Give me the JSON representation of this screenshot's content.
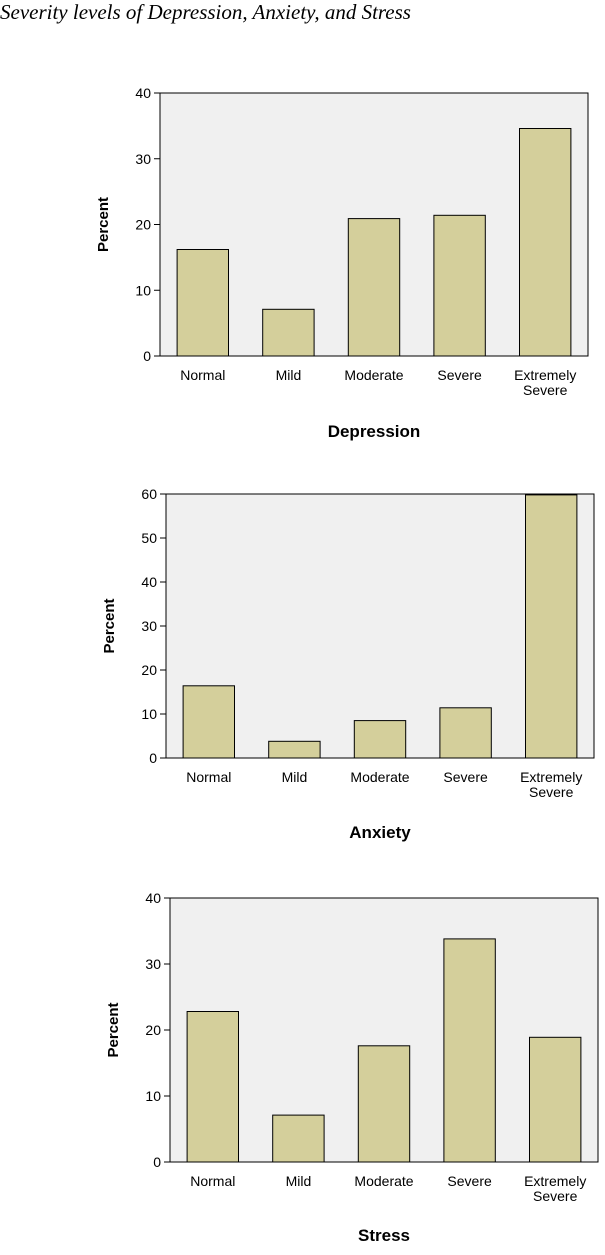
{
  "title": "Severity levels of Depression, Anxiety, and Stress",
  "colors": {
    "bar_fill": "#d4cf9b",
    "bar_stroke": "#000000",
    "plot_bg": "#f0f0f0"
  },
  "chart_data": [
    {
      "type": "bar",
      "categories": [
        "Normal",
        "Mild",
        "Moderate",
        "Severe",
        "Extremely Severe"
      ],
      "values": [
        16.2,
        7.1,
        20.9,
        21.4,
        34.6
      ],
      "xlabel": "Depression",
      "ylabel": "Percent",
      "ylim": [
        0,
        40
      ],
      "yticks": [
        0,
        10,
        20,
        30,
        40
      ],
      "grid": false
    },
    {
      "type": "bar",
      "categories": [
        "Normal",
        "Mild",
        "Moderate",
        "Severe",
        "Extremely Severe"
      ],
      "values": [
        16.4,
        3.8,
        8.5,
        11.4,
        59.8
      ],
      "xlabel": "Anxiety",
      "ylabel": "Percent",
      "ylim": [
        0,
        60
      ],
      "yticks": [
        0,
        10,
        20,
        30,
        40,
        50,
        60
      ],
      "grid": false
    },
    {
      "type": "bar",
      "categories": [
        "Normal",
        "Mild",
        "Moderate",
        "Severe",
        "Extremely Severe"
      ],
      "values": [
        22.8,
        7.1,
        17.6,
        33.8,
        18.9
      ],
      "xlabel": "Stress",
      "ylabel": "Percent",
      "ylim": [
        0,
        40
      ],
      "yticks": [
        0,
        10,
        20,
        30,
        40
      ],
      "grid": false
    }
  ]
}
